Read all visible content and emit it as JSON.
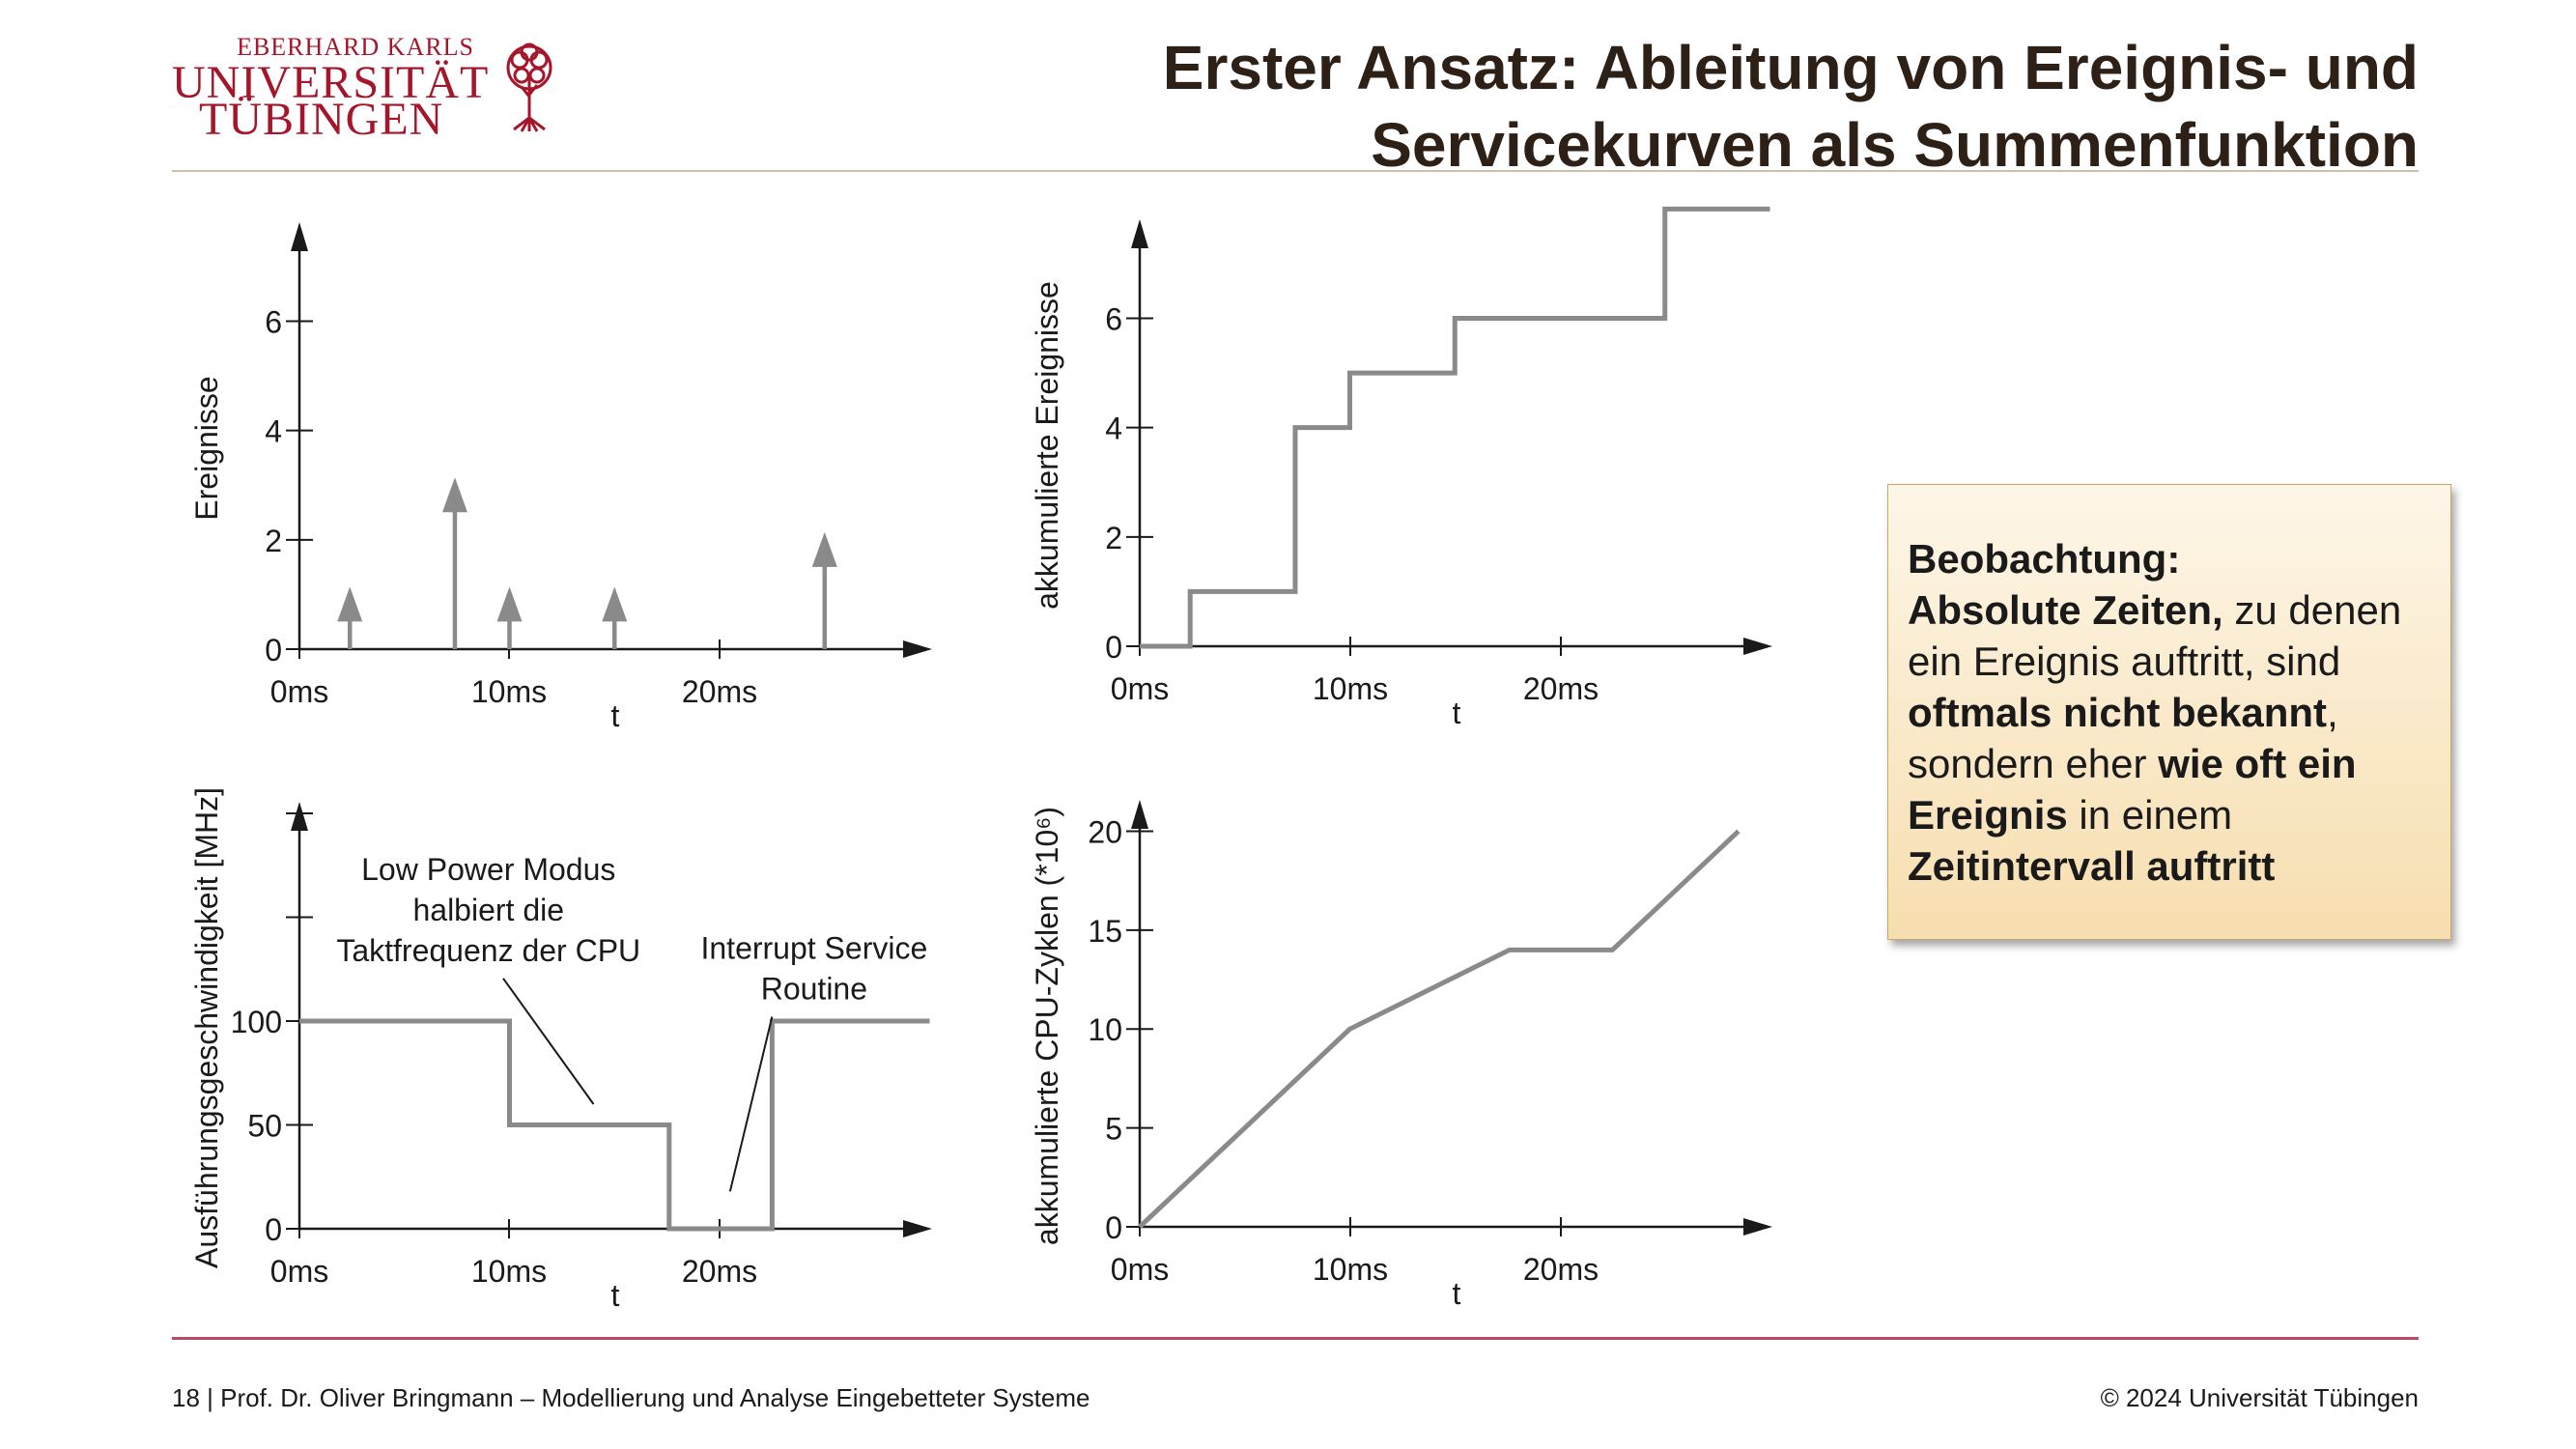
{
  "header": {
    "logo_line1": "EBERHARD KARLS",
    "logo_line2": "UNIVERSITÄT",
    "logo_line3": "TÜBINGEN",
    "title_line1": "Erster Ansatz: Ableitung von Ereignis- und",
    "title_line2": "Servicekurven als Summenfunktion"
  },
  "callout": {
    "heading": "Beobachtung:",
    "p1_bold": "Absolute Zeiten,",
    "p1_rest": " zu denen ein Ereignis auftritt, sind ",
    "p2_bold": "oftmals nicht bekannt",
    "p2_rest": ", sondern eher ",
    "p3_bold": "wie oft ein Ereignis",
    "p3_rest": " in einem ",
    "p4_bold": "Zeitintervall auftritt"
  },
  "footer": {
    "left": "18 | Prof. Dr. Oliver Bringmann – Modellierung und Analyse Eingebetteter Systeme",
    "right": "© 2024 Universität Tübingen"
  },
  "colors": {
    "brand": "#a5162b",
    "series": "#8a8a8a",
    "axis": "#1a1a1a"
  },
  "chart_data": [
    {
      "type": "stem",
      "ylabel": "Ereignisse",
      "xlabel": "t",
      "x_ticks": [
        "0ms",
        "10ms",
        "20ms"
      ],
      "y_ticks": [
        0,
        2,
        4,
        6
      ],
      "ylim": [
        0,
        7.6
      ],
      "xlim": [
        0,
        30
      ],
      "points": [
        {
          "x": 2.4,
          "y": 1
        },
        {
          "x": 7.4,
          "y": 3
        },
        {
          "x": 10.0,
          "y": 1
        },
        {
          "x": 15.0,
          "y": 1
        },
        {
          "x": 25.0,
          "y": 2
        }
      ]
    },
    {
      "type": "step",
      "ylabel": "akkumulierte Ereignisse",
      "xlabel": "t",
      "x_ticks": [
        "0ms",
        "10ms",
        "20ms"
      ],
      "y_ticks": [
        0,
        2,
        4,
        6
      ],
      "ylim": [
        0,
        7.6
      ],
      "xlim": [
        0,
        30
      ],
      "points": [
        {
          "x": 0,
          "y": 0
        },
        {
          "x": 2.4,
          "y": 0
        },
        {
          "x": 2.4,
          "y": 1
        },
        {
          "x": 7.4,
          "y": 1
        },
        {
          "x": 7.4,
          "y": 4
        },
        {
          "x": 10.0,
          "y": 4
        },
        {
          "x": 10.0,
          "y": 5
        },
        {
          "x": 15.0,
          "y": 5
        },
        {
          "x": 15.0,
          "y": 6
        },
        {
          "x": 25.0,
          "y": 6
        },
        {
          "x": 25.0,
          "y": 8
        },
        {
          "x": 30.0,
          "y": 8
        }
      ]
    },
    {
      "type": "line",
      "ylabel": "Ausführungsgeschwindigkeit [MHz]",
      "xlabel": "t",
      "x_ticks": [
        "0ms",
        "10ms",
        "20ms"
      ],
      "y_ticks": [
        0,
        50,
        100
      ],
      "extra_y_ticks": [
        150,
        200
      ],
      "ylim": [
        0,
        200
      ],
      "xlim": [
        0,
        30
      ],
      "annotations": [
        {
          "lines": [
            "Low Power Modus",
            "halbiert die",
            "Taktfrequenz der CPU"
          ],
          "x": 9.0,
          "y": 168,
          "point_x": 14.0,
          "point_y": 60
        },
        {
          "lines": [
            "Interrupt Service",
            "Routine"
          ],
          "x": 24.5,
          "y": 130,
          "point_x": 20.5,
          "point_y": 18
        }
      ],
      "points": [
        {
          "x": 0,
          "y": 100
        },
        {
          "x": 10.0,
          "y": 100
        },
        {
          "x": 10.0,
          "y": 50
        },
        {
          "x": 17.6,
          "y": 50
        },
        {
          "x": 17.6,
          "y": 0
        },
        {
          "x": 22.5,
          "y": 0
        },
        {
          "x": 22.5,
          "y": 100
        },
        {
          "x": 30.0,
          "y": 100
        }
      ]
    },
    {
      "type": "line",
      "ylabel": "akkumulierte CPU-Zyklen (*10⁶)",
      "xlabel": "t",
      "x_ticks": [
        "0ms",
        "10ms",
        "20ms"
      ],
      "y_ticks": [
        0,
        5,
        10,
        15,
        20
      ],
      "ylim": [
        0,
        21
      ],
      "xlim": [
        0,
        30
      ],
      "points": [
        {
          "x": 0,
          "y": 0
        },
        {
          "x": 10.0,
          "y": 10
        },
        {
          "x": 17.6,
          "y": 14
        },
        {
          "x": 22.5,
          "y": 14
        },
        {
          "x": 28.5,
          "y": 20
        }
      ]
    }
  ]
}
